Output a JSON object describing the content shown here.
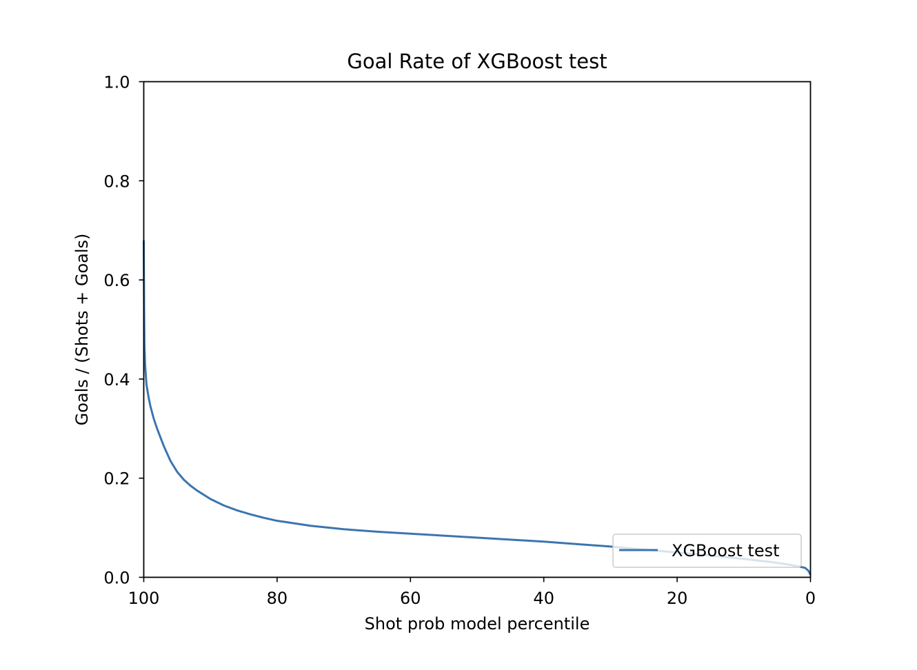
{
  "chart_data": {
    "type": "line",
    "title": "Goal Rate of XGBoost test",
    "xlabel": "Shot prob model percentile",
    "ylabel": "Goals / (Shots + Goals)",
    "xlim": [
      100,
      0
    ],
    "ylim": [
      0.0,
      1.0
    ],
    "x_inverted": true,
    "xticks": [
      100,
      80,
      60,
      40,
      20,
      0
    ],
    "xtick_labels": [
      "100",
      "80",
      "60",
      "40",
      "20",
      "0"
    ],
    "yticks": [
      0.0,
      0.2,
      0.4,
      0.6,
      0.8,
      1.0
    ],
    "ytick_labels": [
      "0.0",
      "0.2",
      "0.4",
      "0.6",
      "0.8",
      "1.0"
    ],
    "grid": false,
    "legend_position": "lower-right",
    "series": [
      {
        "name": "XGBoost test",
        "color": "#3b75af",
        "x": [
          100,
          99.95,
          99.9,
          99.8,
          99.6,
          99.3,
          99.0,
          98.5,
          98.0,
          97.0,
          96.0,
          95.0,
          94.0,
          93.0,
          92.0,
          90.0,
          88.0,
          86.0,
          84.0,
          82.0,
          80.0,
          78.0,
          75.0,
          70.0,
          65.0,
          60.0,
          55.0,
          50.0,
          45.0,
          40.0,
          35.0,
          30.0,
          25.0,
          20.0,
          15.0,
          10.0,
          6.0,
          3.0,
          1.5,
          0.8,
          0.3,
          0.0
        ],
        "y": [
          0.68,
          0.55,
          0.47,
          0.43,
          0.39,
          0.365,
          0.345,
          0.32,
          0.3,
          0.265,
          0.235,
          0.213,
          0.197,
          0.185,
          0.175,
          0.158,
          0.145,
          0.135,
          0.127,
          0.12,
          0.114,
          0.11,
          0.104,
          0.097,
          0.092,
          0.088,
          0.084,
          0.08,
          0.076,
          0.072,
          0.067,
          0.062,
          0.056,
          0.05,
          0.044,
          0.037,
          0.031,
          0.025,
          0.021,
          0.019,
          0.013,
          0.005
        ]
      }
    ]
  }
}
